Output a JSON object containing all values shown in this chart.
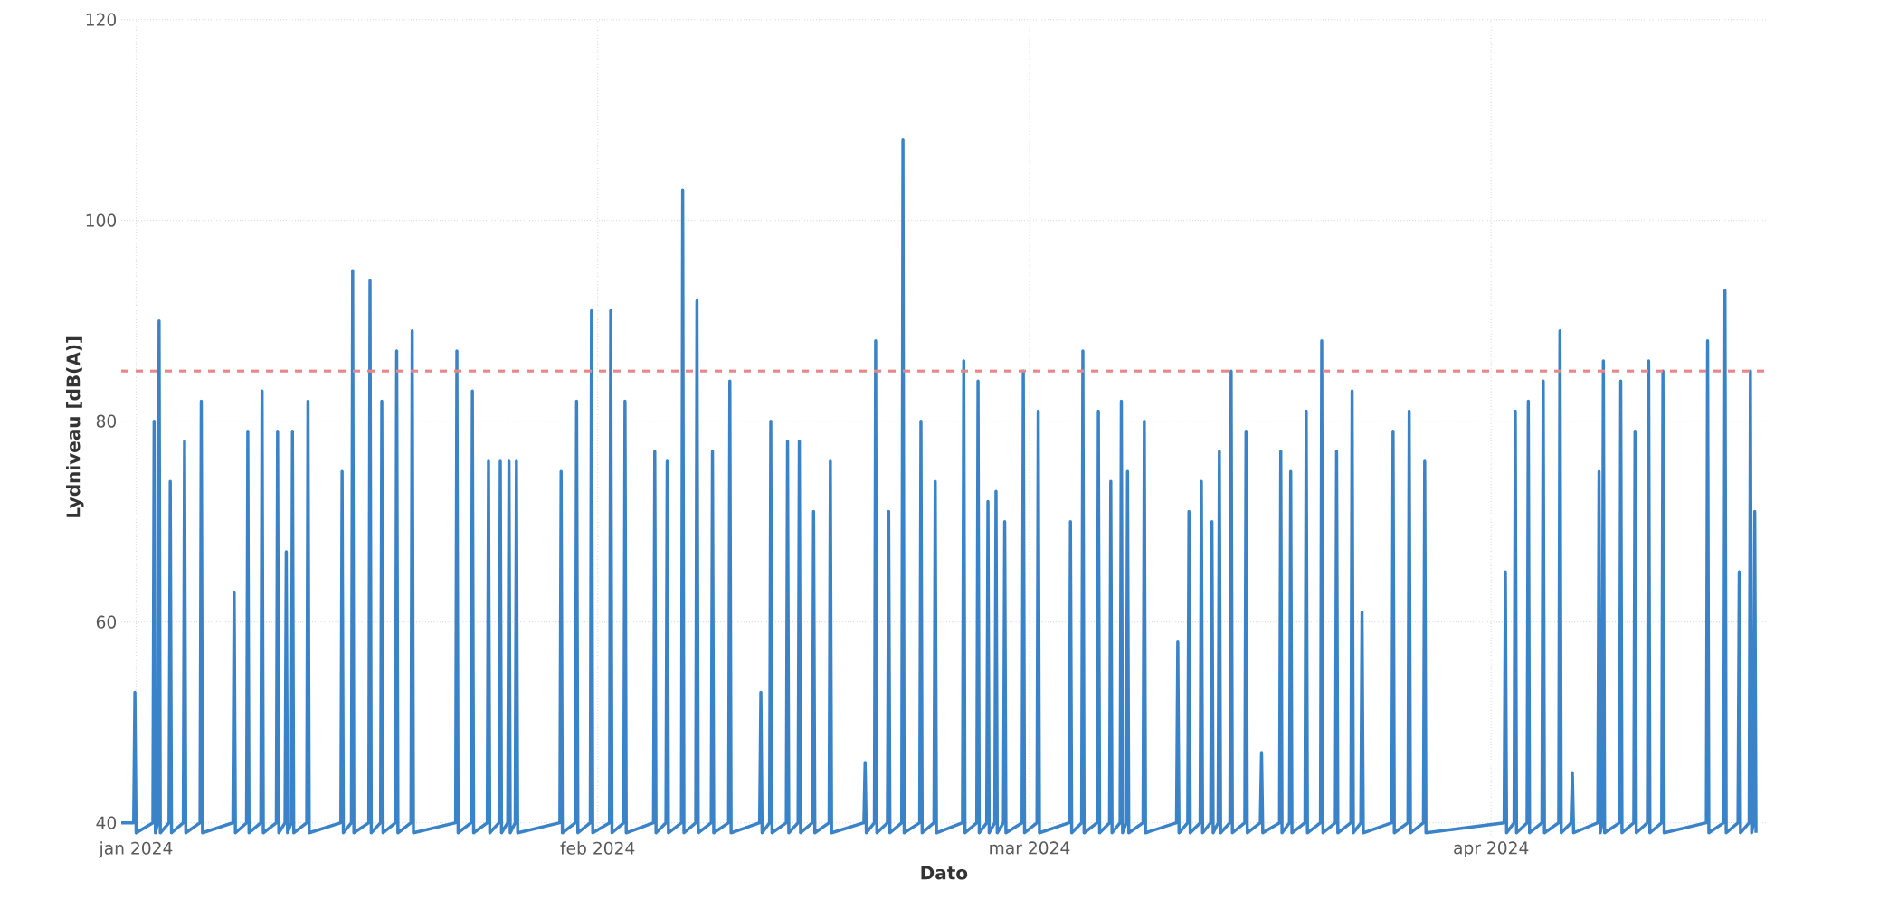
{
  "chart_data": {
    "type": "line",
    "xlabel": "Dato",
    "ylabel": "Lydniveau [dB(A)]",
    "xlim": [
      "2023-12-31T00:00",
      "2024-04-19T12:00"
    ],
    "xticks": [
      {
        "value": "2024-01-01",
        "label": "jan 2024"
      },
      {
        "value": "2024-02-01",
        "label": "feb 2024"
      },
      {
        "value": "2024-03-01",
        "label": "mar 2024"
      },
      {
        "value": "2024-04-01",
        "label": "apr 2024"
      }
    ],
    "ylim": [
      38.8,
      120
    ],
    "yticks": [
      40,
      60,
      80,
      100,
      120
    ],
    "grid": true,
    "line_style": "solid",
    "ref_lines": [
      {
        "axis": "y",
        "value": 85,
        "color": "#e8878a",
        "line_style": "dashed"
      }
    ],
    "series": [
      {
        "color": "#3a83c8",
        "x": [
          "2023-12-31T00:00",
          "2023-12-31T20:00",
          "2023-12-31T22:00",
          "2024-01-01T00:00",
          "2024-01-02T03:00",
          "2024-01-02T05:00",
          "2024-01-02T07:00",
          "2024-01-02T11:00",
          "2024-01-02T13:00",
          "2024-01-02T15:00",
          "2024-01-03T05:00",
          "2024-01-03T07:00",
          "2024-01-03T09:00",
          "2024-01-04T04:00",
          "2024-01-04T06:00",
          "2024-01-04T08:00",
          "2024-01-05T07:00",
          "2024-01-05T09:00",
          "2024-01-05T11:00",
          "2024-01-07T12:00",
          "2024-01-07T14:00",
          "2024-01-07T16:00",
          "2024-01-08T10:00",
          "2024-01-08T12:00",
          "2024-01-08T14:00",
          "2024-01-09T09:00",
          "2024-01-09T11:00",
          "2024-01-09T13:00",
          "2024-01-10T10:00",
          "2024-01-10T12:00",
          "2024-01-10T14:00",
          "2024-01-11T00:00",
          "2024-01-11T02:00",
          "2024-01-11T04:00",
          "2024-01-11T10:00",
          "2024-01-11T12:00",
          "2024-01-11T14:00",
          "2024-01-12T11:00",
          "2024-01-12T13:00",
          "2024-01-12T15:00",
          "2024-01-14T18:00",
          "2024-01-14T20:00",
          "2024-01-14T22:00",
          "2024-01-15T11:00",
          "2024-01-15T13:00",
          "2024-01-15T15:00",
          "2024-01-16T15:00",
          "2024-01-16T17:00",
          "2024-01-16T19:00",
          "2024-01-17T10:00",
          "2024-01-17T12:00",
          "2024-01-17T14:00",
          "2024-01-18T10:00",
          "2024-01-18T12:00",
          "2024-01-18T14:00",
          "2024-01-19T11:00",
          "2024-01-19T13:00",
          "2024-01-19T15:00",
          "2024-01-22T11:00",
          "2024-01-22T13:00",
          "2024-01-22T15:00",
          "2024-01-23T12:00",
          "2024-01-23T14:00",
          "2024-01-23T16:00",
          "2024-01-24T14:00",
          "2024-01-24T16:00",
          "2024-01-24T18:00",
          "2024-01-25T09:00",
          "2024-01-25T11:00",
          "2024-01-25T13:00",
          "2024-01-25T23:00",
          "2024-01-26T01:00",
          "2024-01-26T03:00",
          "2024-01-26T11:00",
          "2024-01-26T13:00",
          "2024-01-26T15:00",
          "2024-01-29T11:00",
          "2024-01-29T13:00",
          "2024-01-29T15:00",
          "2024-01-30T12:00",
          "2024-01-30T14:00",
          "2024-01-30T16:00",
          "2024-01-31T12:00",
          "2024-01-31T14:00",
          "2024-01-31T16:00",
          "2024-02-01T19:00",
          "2024-02-01T21:00",
          "2024-02-01T23:00",
          "2024-02-02T18:00",
          "2024-02-02T20:00",
          "2024-02-02T22:00",
          "2024-02-04T18:00",
          "2024-02-04T20:00",
          "2024-02-04T22:00",
          "2024-02-05T14:00",
          "2024-02-05T16:00",
          "2024-02-05T18:00",
          "2024-02-06T15:00",
          "2024-02-06T17:00",
          "2024-02-06T19:00",
          "2024-02-07T14:00",
          "2024-02-07T16:00",
          "2024-02-07T18:00",
          "2024-02-08T15:00",
          "2024-02-08T17:00",
          "2024-02-08T19:00",
          "2024-02-09T19:00",
          "2024-02-09T21:00",
          "2024-02-09T23:00",
          "2024-02-11T21:00",
          "2024-02-11T23:00",
          "2024-02-12T01:00",
          "2024-02-12T13:00",
          "2024-02-12T15:00",
          "2024-02-12T17:00",
          "2024-02-13T16:00",
          "2024-02-13T18:00",
          "2024-02-13T20:00",
          "2024-02-14T11:00",
          "2024-02-14T13:00",
          "2024-02-14T15:00",
          "2024-02-15T10:00",
          "2024-02-15T12:00",
          "2024-02-15T14:00",
          "2024-02-16T13:00",
          "2024-02-16T15:00",
          "2024-02-16T17:00",
          "2024-02-18T21:00",
          "2024-02-18T23:00",
          "2024-02-19T01:00",
          "2024-02-19T14:00",
          "2024-02-19T16:00",
          "2024-02-19T18:00",
          "2024-02-20T11:00",
          "2024-02-20T13:00",
          "2024-02-20T15:00",
          "2024-02-21T10:00",
          "2024-02-21T12:00",
          "2024-02-21T14:00",
          "2024-02-22T15:00",
          "2024-02-22T17:00",
          "2024-02-22T19:00",
          "2024-02-23T14:00",
          "2024-02-23T16:00",
          "2024-02-23T18:00",
          "2024-02-25T12:00",
          "2024-02-25T14:00",
          "2024-02-25T16:00",
          "2024-02-26T11:00",
          "2024-02-26T13:00",
          "2024-02-26T15:00",
          "2024-02-27T03:00",
          "2024-02-27T05:00",
          "2024-02-27T07:00",
          "2024-02-27T16:00",
          "2024-02-27T18:00",
          "2024-02-27T20:00",
          "2024-02-28T06:00",
          "2024-02-28T08:00",
          "2024-02-28T10:00",
          "2024-02-29T12:00",
          "2024-02-29T14:00",
          "2024-02-29T16:00",
          "2024-03-01T12:00",
          "2024-03-01T14:00",
          "2024-03-01T16:00",
          "2024-03-03T16:00",
          "2024-03-03T18:00",
          "2024-03-03T20:00",
          "2024-03-04T12:00",
          "2024-03-04T14:00",
          "2024-03-04T16:00",
          "2024-03-05T13:00",
          "2024-03-05T15:00",
          "2024-03-05T17:00",
          "2024-03-06T09:00",
          "2024-03-06T11:00",
          "2024-03-06T13:00",
          "2024-03-07T02:00",
          "2024-03-07T04:00",
          "2024-03-07T06:00",
          "2024-03-07T12:00",
          "2024-03-07T14:00",
          "2024-03-07T16:00",
          "2024-03-08T15:00",
          "2024-03-08T17:00",
          "2024-03-08T19:00",
          "2024-03-10T21:00",
          "2024-03-10T23:00",
          "2024-03-11T01:00",
          "2024-03-11T15:00",
          "2024-03-11T17:00",
          "2024-03-11T19:00",
          "2024-03-12T11:00",
          "2024-03-12T13:00",
          "2024-03-12T15:00",
          "2024-03-13T04:00",
          "2024-03-13T06:00",
          "2024-03-13T08:00",
          "2024-03-13T16:00",
          "2024-03-13T18:00",
          "2024-03-13T20:00",
          "2024-03-14T11:00",
          "2024-03-14T13:00",
          "2024-03-14T15:00",
          "2024-03-15T11:00",
          "2024-03-15T13:00",
          "2024-03-15T15:00",
          "2024-03-16T12:00",
          "2024-03-16T14:00",
          "2024-03-16T16:00",
          "2024-03-17T19:00",
          "2024-03-17T21:00",
          "2024-03-17T23:00",
          "2024-03-18T11:00",
          "2024-03-18T13:00",
          "2024-03-18T15:00",
          "2024-03-19T12:00",
          "2024-03-19T14:00",
          "2024-03-19T16:00",
          "2024-03-20T13:00",
          "2024-03-20T15:00",
          "2024-03-20T17:00",
          "2024-03-21T13:00",
          "2024-03-21T15:00",
          "2024-03-21T17:00",
          "2024-03-22T14:00",
          "2024-03-22T16:00",
          "2024-03-22T18:00",
          "2024-03-23T06:00",
          "2024-03-23T08:00",
          "2024-03-23T10:00",
          "2024-03-25T08:00",
          "2024-03-25T10:00",
          "2024-03-25T12:00",
          "2024-03-26T10:00",
          "2024-03-26T12:00",
          "2024-03-26T14:00",
          "2024-03-27T11:00",
          "2024-03-27T13:00",
          "2024-03-27T15:00",
          "2024-04-01T21:00",
          "2024-04-01T23:00",
          "2024-04-02T01:00",
          "2024-04-02T13:00",
          "2024-04-02T15:00",
          "2024-04-02T17:00",
          "2024-04-03T10:00",
          "2024-04-03T12:00",
          "2024-04-03T14:00",
          "2024-04-04T10:00",
          "2024-04-04T12:00",
          "2024-04-04T14:00",
          "2024-04-05T13:00",
          "2024-04-05T15:00",
          "2024-04-05T17:00",
          "2024-04-06T09:00",
          "2024-04-06T11:00",
          "2024-04-06T13:00",
          "2024-04-08T04:00",
          "2024-04-08T06:00",
          "2024-04-08T08:00",
          "2024-04-08T11:00",
          "2024-04-08T13:00",
          "2024-04-08T15:00",
          "2024-04-09T15:00",
          "2024-04-09T17:00",
          "2024-04-09T19:00",
          "2024-04-10T14:00",
          "2024-04-10T16:00",
          "2024-04-10T18:00",
          "2024-04-11T12:00",
          "2024-04-11T14:00",
          "2024-04-11T16:00",
          "2024-04-12T11:00",
          "2024-04-12T13:00",
          "2024-04-12T15:00",
          "2024-04-15T11:00",
          "2024-04-15T13:00",
          "2024-04-15T15:00",
          "2024-04-16T15:00",
          "2024-04-16T17:00",
          "2024-04-16T19:00",
          "2024-04-17T14:00",
          "2024-04-17T16:00",
          "2024-04-17T18:00",
          "2024-04-18T08:00",
          "2024-04-18T10:00",
          "2024-04-18T12:00",
          "2024-04-18T15:00",
          "2024-04-18T17:00",
          "2024-04-18T19:00"
        ],
        "values": [
          40,
          40,
          53,
          39,
          40,
          80,
          39,
          40,
          90,
          39,
          40,
          74,
          39,
          40,
          78,
          39,
          40,
          82,
          39,
          40,
          63,
          39,
          40,
          79,
          39,
          40,
          83,
          39,
          40,
          79,
          39,
          40,
          67,
          39,
          40,
          79,
          39,
          40,
          82,
          39,
          40,
          75,
          39,
          40,
          95,
          39,
          40,
          94,
          39,
          40,
          82,
          39,
          40,
          87,
          39,
          40,
          89,
          39,
          40,
          87,
          39,
          40,
          83,
          39,
          40,
          76,
          39,
          40,
          76,
          39,
          40,
          76,
          39,
          40,
          76,
          39,
          40,
          75,
          39,
          40,
          82,
          39,
          40,
          91,
          39,
          40,
          91,
          39,
          40,
          82,
          39,
          40,
          77,
          39,
          40,
          76,
          39,
          40,
          103,
          39,
          40,
          92,
          39,
          40,
          77,
          39,
          40,
          84,
          39,
          40,
          53,
          39,
          40,
          80,
          39,
          40,
          78,
          39,
          40,
          78,
          39,
          40,
          71,
          39,
          40,
          76,
          39,
          40,
          46,
          39,
          40,
          88,
          39,
          40,
          71,
          39,
          40,
          108,
          39,
          40,
          80,
          39,
          40,
          74,
          39,
          40,
          86,
          39,
          40,
          84,
          39,
          40,
          72,
          39,
          40,
          73,
          39,
          40,
          70,
          39,
          40,
          85,
          39,
          40,
          81,
          39,
          40,
          70,
          39,
          40,
          87,
          39,
          40,
          81,
          39,
          40,
          74,
          39,
          40,
          82,
          39,
          40,
          75,
          39,
          40,
          80,
          39,
          40,
          58,
          39,
          40,
          71,
          39,
          40,
          74,
          39,
          40,
          70,
          39,
          40,
          77,
          39,
          40,
          85,
          39,
          40,
          79,
          39,
          40,
          47,
          39,
          40,
          77,
          39,
          40,
          75,
          39,
          40,
          81,
          39,
          40,
          88,
          39,
          40,
          77,
          39,
          40,
          83,
          39,
          40,
          61,
          39,
          40,
          79,
          39,
          40,
          81,
          39,
          40,
          76,
          39,
          40,
          65,
          39,
          40,
          81,
          39,
          40,
          82,
          39,
          40,
          84,
          39,
          40,
          89,
          39,
          40,
          45,
          39,
          40,
          75,
          39,
          40,
          86,
          39,
          40,
          84,
          39,
          40,
          79,
          39,
          40,
          86,
          39,
          40,
          85,
          39,
          40,
          88,
          39,
          40,
          93,
          39,
          40,
          65,
          39,
          40,
          85,
          39,
          40,
          71,
          39
        ]
      }
    ]
  }
}
